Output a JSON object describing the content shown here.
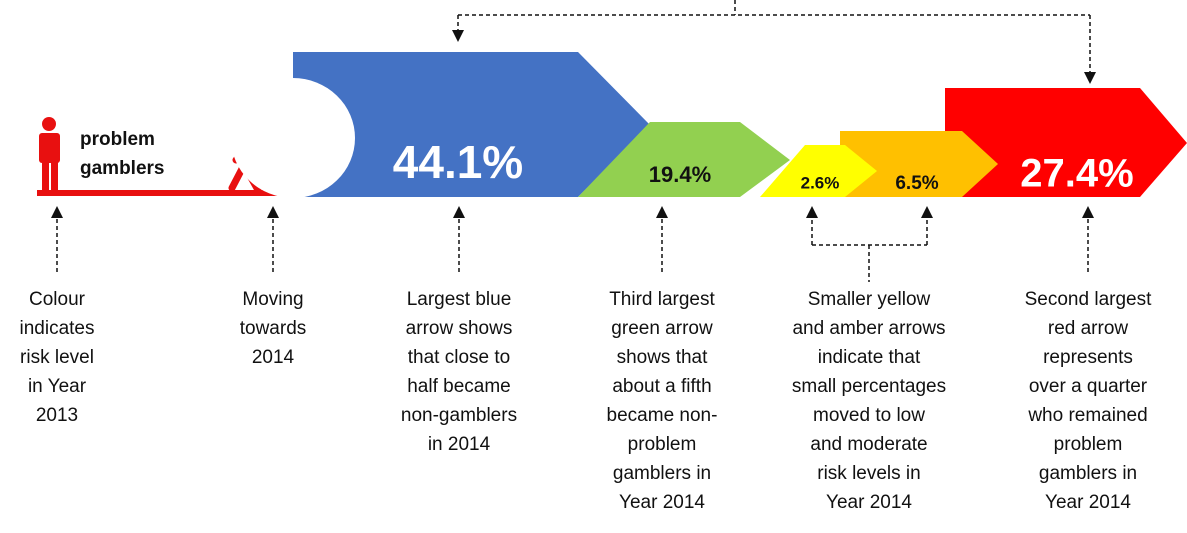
{
  "legend": {
    "lines": [
      "problem",
      "gamblers"
    ]
  },
  "arrows": [
    {
      "label": "44.1%"
    },
    {
      "label": "19.4%"
    },
    {
      "label": "2.6%"
    },
    {
      "label": "6.5%"
    },
    {
      "label": "27.4%"
    }
  ],
  "captions": [
    [
      "Colour",
      "indicates",
      "risk level",
      "in Year",
      "2013"
    ],
    [
      "Moving",
      "towards",
      "2014"
    ],
    [
      "Largest blue",
      "arrow shows",
      "that close to",
      "half became",
      "non-gamblers",
      "in 2014"
    ],
    [
      "Third largest",
      "green arrow",
      "shows that",
      "about a fifth",
      "became non-",
      "problem",
      "gamblers in",
      "Year 2014"
    ],
    [
      "Smaller yellow",
      "and amber arrows",
      "indicate that",
      "small percentages",
      "moved to low",
      "and moderate",
      "risk levels in",
      "Year 2014"
    ],
    [
      "Second largest",
      "red arrow",
      "represents",
      "over a quarter",
      "who remained",
      "problem",
      "gamblers in",
      "Year 2014"
    ]
  ]
}
